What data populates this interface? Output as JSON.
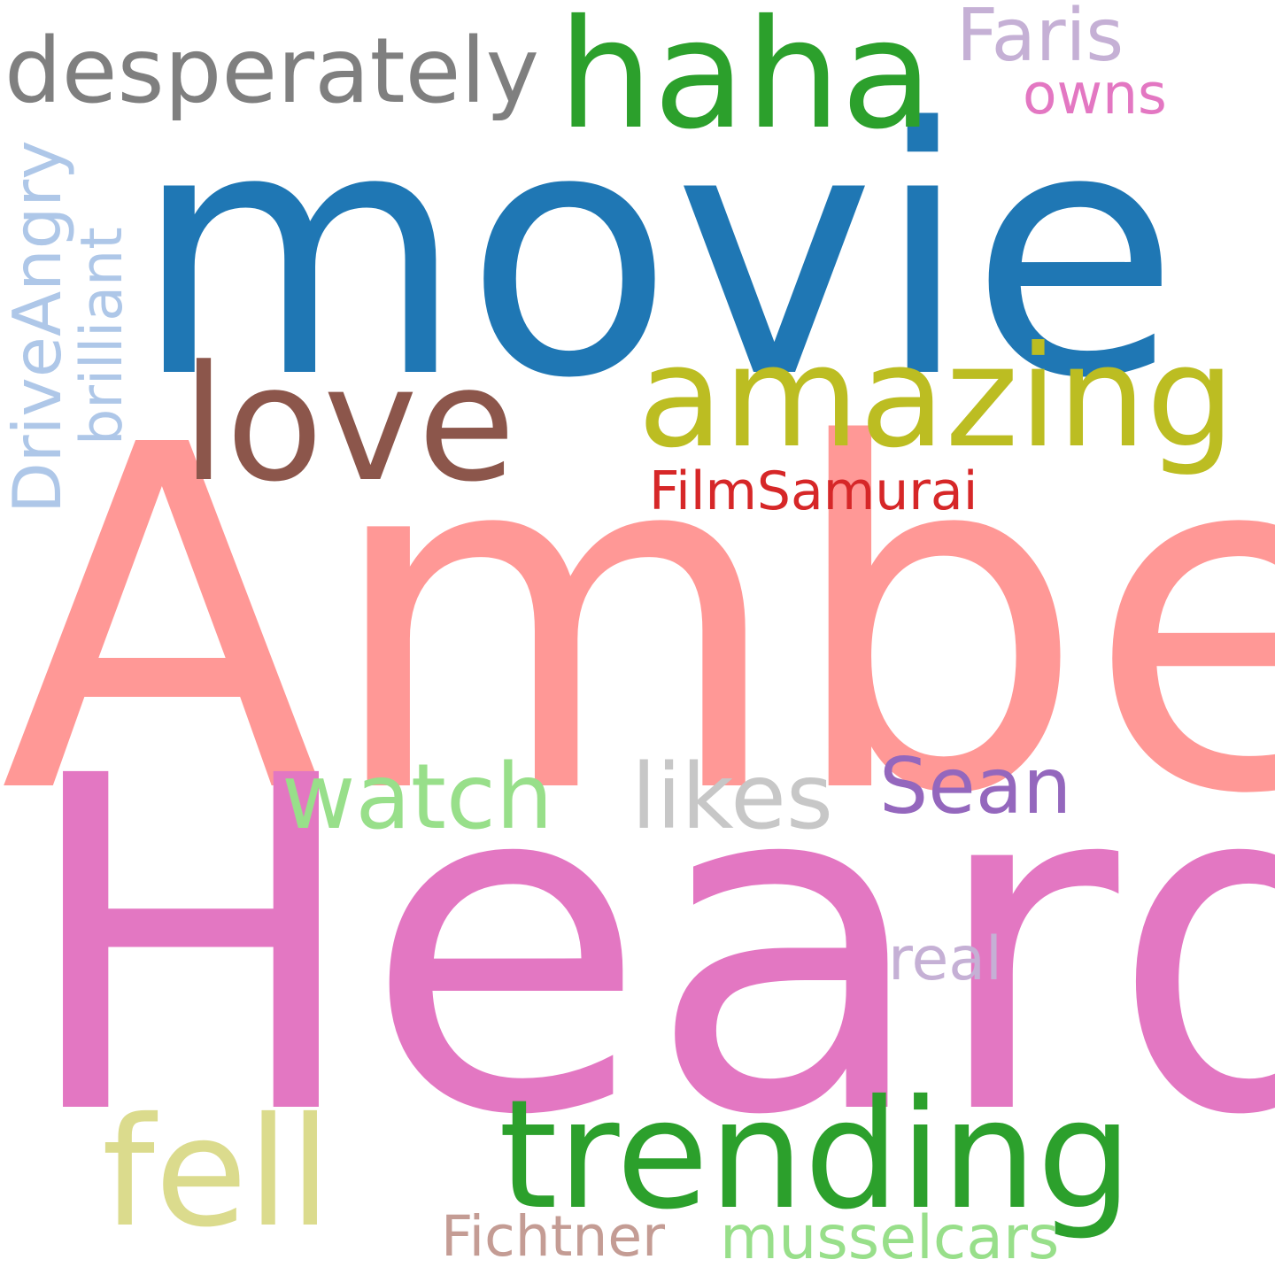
{
  "cloud": {
    "words": {
      "amber": {
        "text": "Amber",
        "color": "#ff9896"
      },
      "heard": {
        "text": "Heard",
        "color": "#e377c2"
      },
      "movie": {
        "text": "movie",
        "color": "#1f77b4"
      },
      "haha": {
        "text": "haha",
        "color": "#2ca02c"
      },
      "desperately": {
        "text": "desperately",
        "color": "#7f7f7f"
      },
      "faris": {
        "text": "Faris",
        "color": "#c5b0d5"
      },
      "owns": {
        "text": "owns",
        "color": "#e377c2"
      },
      "love": {
        "text": "love",
        "color": "#8c564b"
      },
      "amazing": {
        "text": "amazing",
        "color": "#bcbd22"
      },
      "filmsamurai": {
        "text": "FilmSamurai",
        "color": "#d62728"
      },
      "watch": {
        "text": "watch",
        "color": "#98df8a"
      },
      "likes": {
        "text": "likes",
        "color": "#c7c7c7"
      },
      "sean": {
        "text": "Sean",
        "color": "#9467bd"
      },
      "real": {
        "text": "real",
        "color": "#c5b0d5"
      },
      "fell": {
        "text": "fell",
        "color": "#dbdb8d"
      },
      "trending": {
        "text": "trending",
        "color": "#2ca02c"
      },
      "fichtner": {
        "text": "Fichtner",
        "color": "#c49c94"
      },
      "musselcars": {
        "text": "musselcars",
        "color": "#98df8a"
      },
      "driveangry": {
        "text": "DriveAngry",
        "color": "#aec7e8"
      },
      "brilliant": {
        "text": "brilliant",
        "color": "#aec7e8"
      }
    }
  }
}
